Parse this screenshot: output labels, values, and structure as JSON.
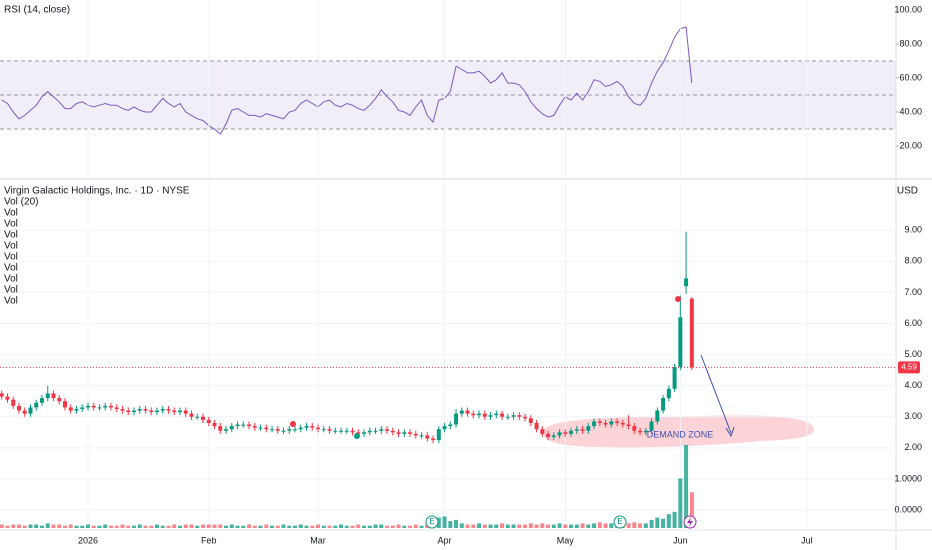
{
  "chart_data": [
    {
      "type": "line",
      "title": "RSI (14, close)",
      "color": "#7e57c2",
      "band_color": "#7e57c2",
      "levels": [
        70,
        50,
        30
      ],
      "xlim": [
        -0.3,
        155.5
      ],
      "ylim": [
        1.2,
        105.9
      ],
      "yticks": [
        {
          "value": 100,
          "label": "100.00"
        },
        {
          "value": 80,
          "label": "80.00"
        },
        {
          "value": 60,
          "label": "60.00"
        },
        {
          "value": 40,
          "label": "40.00"
        },
        {
          "value": 20,
          "label": "20.00"
        }
      ],
      "values": [
        47,
        45,
        40,
        36,
        38,
        41,
        44,
        49,
        52,
        49,
        46,
        42,
        42,
        45,
        46,
        44,
        43,
        44,
        45,
        44,
        44,
        42,
        41,
        43,
        41,
        40,
        40,
        44,
        48,
        45,
        43,
        45,
        40,
        38,
        36,
        35,
        32,
        30,
        27,
        33,
        41,
        42,
        40,
        38,
        38,
        37,
        39,
        38,
        37,
        36,
        40,
        41,
        45,
        47,
        45,
        43,
        46,
        47,
        44,
        43,
        45,
        44,
        42,
        41,
        44,
        48,
        53,
        49,
        46,
        41,
        40,
        38,
        43,
        47,
        38,
        34,
        47,
        48,
        52,
        67,
        65,
        63,
        63,
        64,
        61,
        57,
        59,
        63,
        57,
        57,
        56,
        52,
        46,
        42,
        39,
        37,
        38,
        44,
        49,
        47,
        51,
        47,
        52,
        59,
        58,
        55,
        56,
        58,
        55,
        49,
        45,
        44,
        48,
        57,
        64,
        69,
        76,
        84,
        89,
        90,
        57
      ]
    },
    {
      "type": "candlestick",
      "title": "Virgin Galactic Holdings, Inc. · 1D · NYSE",
      "currency": "USD",
      "indicator_labels": [
        "Vol (20)",
        "Vol",
        "Vol",
        "Vol",
        "Vol",
        "Vol",
        "Vol",
        "Vol",
        "Vol",
        "Vol"
      ],
      "up_color": "#089981",
      "down_color": "#f23645",
      "grid": true,
      "xlim": [
        -0.3,
        155.5
      ],
      "ylim": [
        -0.32,
        10.55
      ],
      "y2lim": [
        0,
        300
      ],
      "xticks": [
        {
          "value": 15,
          "label": "2026"
        },
        {
          "value": 36,
          "label": "Feb"
        },
        {
          "value": 55,
          "label": "Mar"
        },
        {
          "value": 77,
          "label": "Apr"
        },
        {
          "value": 98,
          "label": "May"
        },
        {
          "value": 118,
          "label": "Jun"
        },
        {
          "value": 140,
          "label": "Jul"
        }
      ],
      "yticks": [
        {
          "value": 9,
          "label": "9.00"
        },
        {
          "value": 8,
          "label": "8.00"
        },
        {
          "value": 7,
          "label": "7.00"
        },
        {
          "value": 6,
          "label": "6.00"
        },
        {
          "value": 5,
          "label": "5.00"
        },
        {
          "value": 4,
          "label": "4.00"
        },
        {
          "value": 3,
          "label": "3.00"
        },
        {
          "value": 2,
          "label": "2.00"
        },
        {
          "value": 1,
          "label": "1.0000"
        },
        {
          "value": 0,
          "label": "0.0000"
        }
      ],
      "last_price": 4.59,
      "open": [
        3.75,
        3.65,
        3.55,
        3.35,
        3.2,
        3.1,
        3.3,
        3.45,
        3.6,
        3.75,
        3.6,
        3.5,
        3.3,
        3.2,
        3.25,
        3.3,
        3.35,
        3.3,
        3.3,
        3.35,
        3.3,
        3.25,
        3.2,
        3.15,
        3.2,
        3.25,
        3.2,
        3.15,
        3.2,
        3.25,
        3.2,
        3.15,
        3.2,
        3.1,
        3.0,
        3.0,
        2.9,
        2.8,
        2.7,
        2.55,
        2.6,
        2.7,
        2.75,
        2.75,
        2.7,
        2.65,
        2.65,
        2.6,
        2.6,
        2.55,
        2.55,
        2.6,
        2.6,
        2.65,
        2.7,
        2.65,
        2.6,
        2.6,
        2.55,
        2.55,
        2.55,
        2.55,
        2.5,
        2.45,
        2.5,
        2.55,
        2.55,
        2.6,
        2.55,
        2.5,
        2.45,
        2.5,
        2.45,
        2.4,
        2.4,
        2.3,
        2.25,
        2.6,
        2.7,
        2.75,
        3.1,
        3.2,
        3.1,
        3.05,
        3.1,
        3.0,
        3.05,
        3.1,
        3.0,
        3.0,
        3.05,
        3.0,
        2.95,
        2.8,
        2.6,
        2.45,
        2.35,
        2.4,
        2.5,
        2.45,
        2.55,
        2.6,
        2.55,
        2.7,
        2.85,
        2.8,
        2.75,
        2.85,
        2.8,
        2.75,
        2.7,
        2.55,
        2.5,
        2.55,
        2.85,
        3.2,
        3.6,
        3.9,
        4.6,
        7.2,
        6.8
      ],
      "high": [
        3.85,
        3.75,
        3.65,
        3.45,
        3.3,
        3.4,
        3.55,
        3.7,
        4.0,
        3.85,
        3.7,
        3.6,
        3.4,
        3.35,
        3.4,
        3.45,
        3.45,
        3.4,
        3.45,
        3.45,
        3.4,
        3.35,
        3.3,
        3.3,
        3.35,
        3.35,
        3.3,
        3.3,
        3.35,
        3.35,
        3.3,
        3.3,
        3.3,
        3.2,
        3.1,
        3.1,
        3.0,
        2.9,
        2.8,
        2.7,
        2.8,
        2.85,
        2.85,
        2.85,
        2.8,
        2.75,
        2.75,
        2.7,
        2.7,
        2.65,
        2.7,
        2.7,
        2.75,
        2.8,
        2.8,
        2.75,
        2.7,
        2.7,
        2.65,
        2.65,
        2.65,
        2.65,
        2.6,
        2.6,
        2.65,
        2.65,
        2.7,
        2.7,
        2.65,
        2.6,
        2.6,
        2.6,
        2.55,
        2.5,
        2.5,
        2.4,
        2.7,
        2.8,
        2.85,
        3.25,
        3.3,
        3.3,
        3.2,
        3.2,
        3.2,
        3.15,
        3.2,
        3.2,
        3.1,
        3.15,
        3.15,
        3.1,
        3.05,
        2.9,
        2.7,
        2.55,
        2.5,
        2.6,
        2.6,
        2.65,
        2.7,
        2.7,
        2.8,
        2.95,
        2.95,
        2.9,
        2.95,
        2.95,
        2.9,
        3.05,
        2.8,
        2.65,
        2.65,
        2.95,
        3.3,
        3.7,
        4.0,
        4.7,
        6.9,
        8.95,
        6.85
      ],
      "low": [
        3.55,
        3.45,
        3.25,
        3.1,
        3.0,
        3.0,
        3.2,
        3.35,
        3.5,
        3.5,
        3.4,
        3.2,
        3.1,
        3.1,
        3.15,
        3.2,
        3.2,
        3.2,
        3.2,
        3.2,
        3.15,
        3.1,
        3.05,
        3.05,
        3.1,
        3.1,
        3.05,
        3.05,
        3.1,
        3.1,
        3.05,
        3.05,
        3.0,
        2.9,
        2.9,
        2.8,
        2.7,
        2.6,
        2.45,
        2.45,
        2.5,
        2.6,
        2.65,
        2.6,
        2.55,
        2.55,
        2.5,
        2.5,
        2.45,
        2.45,
        2.45,
        2.5,
        2.5,
        2.55,
        2.55,
        2.5,
        2.5,
        2.45,
        2.45,
        2.45,
        2.45,
        2.4,
        2.35,
        2.35,
        2.4,
        2.45,
        2.45,
        2.45,
        2.4,
        2.35,
        2.35,
        2.35,
        2.3,
        2.3,
        2.2,
        2.15,
        2.15,
        2.5,
        2.6,
        2.65,
        3.0,
        3.0,
        2.95,
        2.95,
        2.9,
        2.9,
        2.95,
        2.9,
        2.9,
        2.9,
        2.9,
        2.85,
        2.7,
        2.5,
        2.35,
        2.25,
        2.25,
        2.3,
        2.35,
        2.35,
        2.45,
        2.45,
        2.45,
        2.6,
        2.7,
        2.65,
        2.65,
        2.7,
        2.65,
        2.6,
        2.45,
        2.4,
        2.4,
        2.45,
        2.75,
        3.1,
        3.5,
        3.8,
        4.5,
        6.95,
        4.5
      ],
      "close": [
        3.65,
        3.55,
        3.35,
        3.2,
        3.1,
        3.3,
        3.45,
        3.6,
        3.75,
        3.6,
        3.5,
        3.3,
        3.2,
        3.25,
        3.3,
        3.35,
        3.3,
        3.3,
        3.35,
        3.3,
        3.25,
        3.2,
        3.15,
        3.2,
        3.25,
        3.2,
        3.15,
        3.2,
        3.25,
        3.2,
        3.15,
        3.2,
        3.1,
        3.0,
        3.0,
        2.9,
        2.8,
        2.7,
        2.55,
        2.6,
        2.7,
        2.75,
        2.75,
        2.7,
        2.65,
        2.65,
        2.6,
        2.6,
        2.55,
        2.55,
        2.6,
        2.6,
        2.65,
        2.7,
        2.65,
        2.6,
        2.6,
        2.55,
        2.55,
        2.55,
        2.55,
        2.5,
        2.45,
        2.5,
        2.55,
        2.55,
        2.6,
        2.55,
        2.5,
        2.45,
        2.5,
        2.45,
        2.4,
        2.4,
        2.3,
        2.25,
        2.6,
        2.7,
        2.75,
        3.1,
        3.2,
        3.1,
        3.05,
        3.1,
        3.0,
        3.05,
        3.1,
        3.0,
        3.0,
        3.05,
        3.0,
        2.95,
        2.8,
        2.6,
        2.45,
        2.35,
        2.4,
        2.5,
        2.45,
        2.55,
        2.6,
        2.55,
        2.7,
        2.85,
        2.8,
        2.75,
        2.85,
        2.8,
        2.75,
        2.7,
        2.55,
        2.5,
        2.55,
        2.85,
        3.2,
        3.6,
        3.9,
        4.6,
        6.2,
        7.45,
        4.59
      ],
      "volume": [
        3,
        2,
        3,
        3,
        2,
        3,
        3,
        2,
        4,
        3,
        3,
        2,
        3,
        2,
        2,
        3,
        2,
        2,
        3,
        2,
        2,
        3,
        2,
        2,
        3,
        2,
        2,
        3,
        2,
        2,
        3,
        2,
        3,
        3,
        2,
        3,
        3,
        3,
        3,
        2,
        3,
        2,
        2,
        3,
        2,
        2,
        3,
        2,
        2,
        3,
        2,
        2,
        3,
        2,
        2,
        3,
        2,
        2,
        2,
        3,
        2,
        2,
        3,
        2,
        2,
        3,
        3,
        2,
        2,
        3,
        2,
        2,
        3,
        2,
        3,
        4,
        9,
        10,
        6,
        7,
        4,
        3,
        3,
        4,
        3,
        3,
        3,
        4,
        3,
        3,
        3,
        3,
        4,
        3,
        4,
        3,
        3,
        4,
        3,
        3,
        3,
        4,
        3,
        4,
        5,
        4,
        4,
        3,
        4,
        4,
        5,
        4,
        4,
        7,
        9,
        8,
        12,
        14,
        43,
        72,
        31
      ],
      "annotation": "DEMAND ZONE",
      "event_labels": [
        "E",
        "E"
      ]
    }
  ]
}
